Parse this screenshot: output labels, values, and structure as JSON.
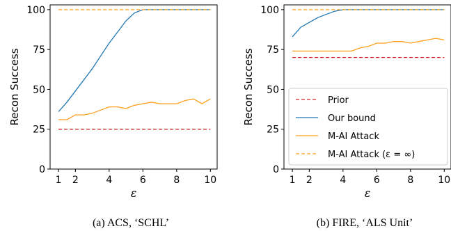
{
  "chart_data": [
    {
      "type": "line",
      "caption": "(a) ACS, ‘SCHL’",
      "xlabel": "ε",
      "ylabel": "Recon Success",
      "xlim": [
        0.5,
        10.4
      ],
      "ylim": [
        0,
        103
      ],
      "xticks": [
        1,
        2,
        4,
        6,
        8,
        10
      ],
      "yticks": [
        0,
        25,
        50,
        75,
        100
      ],
      "legend": null,
      "series": [
        {
          "name": "Prior",
          "color": "#d62728",
          "dash": true,
          "x": [
            1,
            10
          ],
          "y": [
            25,
            25
          ]
        },
        {
          "name": "Our bound",
          "color": "#1f77b4",
          "dash": false,
          "x": [
            1,
            1.5,
            2,
            2.5,
            3,
            3.5,
            4,
            4.5,
            5,
            5.5,
            6,
            6.5,
            7,
            7.5,
            8,
            8.5,
            9,
            9.5,
            10
          ],
          "y": [
            36,
            42,
            49,
            56,
            63,
            71,
            79,
            86,
            93,
            98,
            100,
            100,
            100,
            100,
            100,
            100,
            100,
            100,
            100
          ]
        },
        {
          "name": "M-AI Attack",
          "color": "#ff9f1c",
          "dash": false,
          "x": [
            1,
            1.5,
            2,
            2.5,
            3,
            3.5,
            4,
            4.5,
            5,
            5.5,
            6,
            6.5,
            7,
            7.5,
            8,
            8.5,
            9,
            9.5,
            10
          ],
          "y": [
            31,
            31,
            34,
            34,
            35,
            37,
            39,
            39,
            38,
            40,
            41,
            42,
            41,
            41,
            41,
            43,
            44,
            41,
            44
          ]
        },
        {
          "name": "M-AI Attack (ε = ∞)",
          "color": "#ff9f1c",
          "dash": true,
          "x": [
            1,
            10
          ],
          "y": [
            100,
            100
          ]
        }
      ]
    },
    {
      "type": "line",
      "caption": "(b) FIRE, ‘ALS Unit’",
      "xlabel": "ε",
      "ylabel": "Recon Success",
      "xlim": [
        0.5,
        10.4
      ],
      "ylim": [
        0,
        103
      ],
      "xticks": [
        1,
        2,
        4,
        6,
        8,
        10
      ],
      "yticks": [
        0,
        25,
        50,
        75,
        100
      ],
      "legend": "lower-right",
      "series": [
        {
          "name": "Prior",
          "color": "#d62728",
          "dash": true,
          "x": [
            1,
            10
          ],
          "y": [
            70,
            70
          ]
        },
        {
          "name": "Our bound",
          "color": "#1f77b4",
          "dash": false,
          "x": [
            1,
            1.5,
            2,
            2.5,
            3,
            3.5,
            4,
            4.5,
            5,
            6,
            7,
            8,
            9,
            10
          ],
          "y": [
            83,
            89,
            92,
            95,
            97,
            99,
            100,
            100,
            100,
            100,
            100,
            100,
            100,
            100
          ]
        },
        {
          "name": "M-AI Attack",
          "color": "#ff9f1c",
          "dash": false,
          "x": [
            1,
            1.5,
            2,
            2.5,
            3,
            3.5,
            4,
            4.5,
            5,
            5.5,
            6,
            6.5,
            7,
            7.5,
            8,
            8.5,
            9,
            9.5,
            10
          ],
          "y": [
            74,
            74,
            74,
            74,
            74,
            74,
            74,
            74,
            76,
            77,
            79,
            79,
            80,
            80,
            79,
            80,
            81,
            82,
            81
          ]
        },
        {
          "name": "M-AI Attack (ε = ∞)",
          "color": "#ff9f1c",
          "dash": true,
          "x": [
            1,
            10
          ],
          "y": [
            100,
            100
          ]
        }
      ]
    }
  ]
}
